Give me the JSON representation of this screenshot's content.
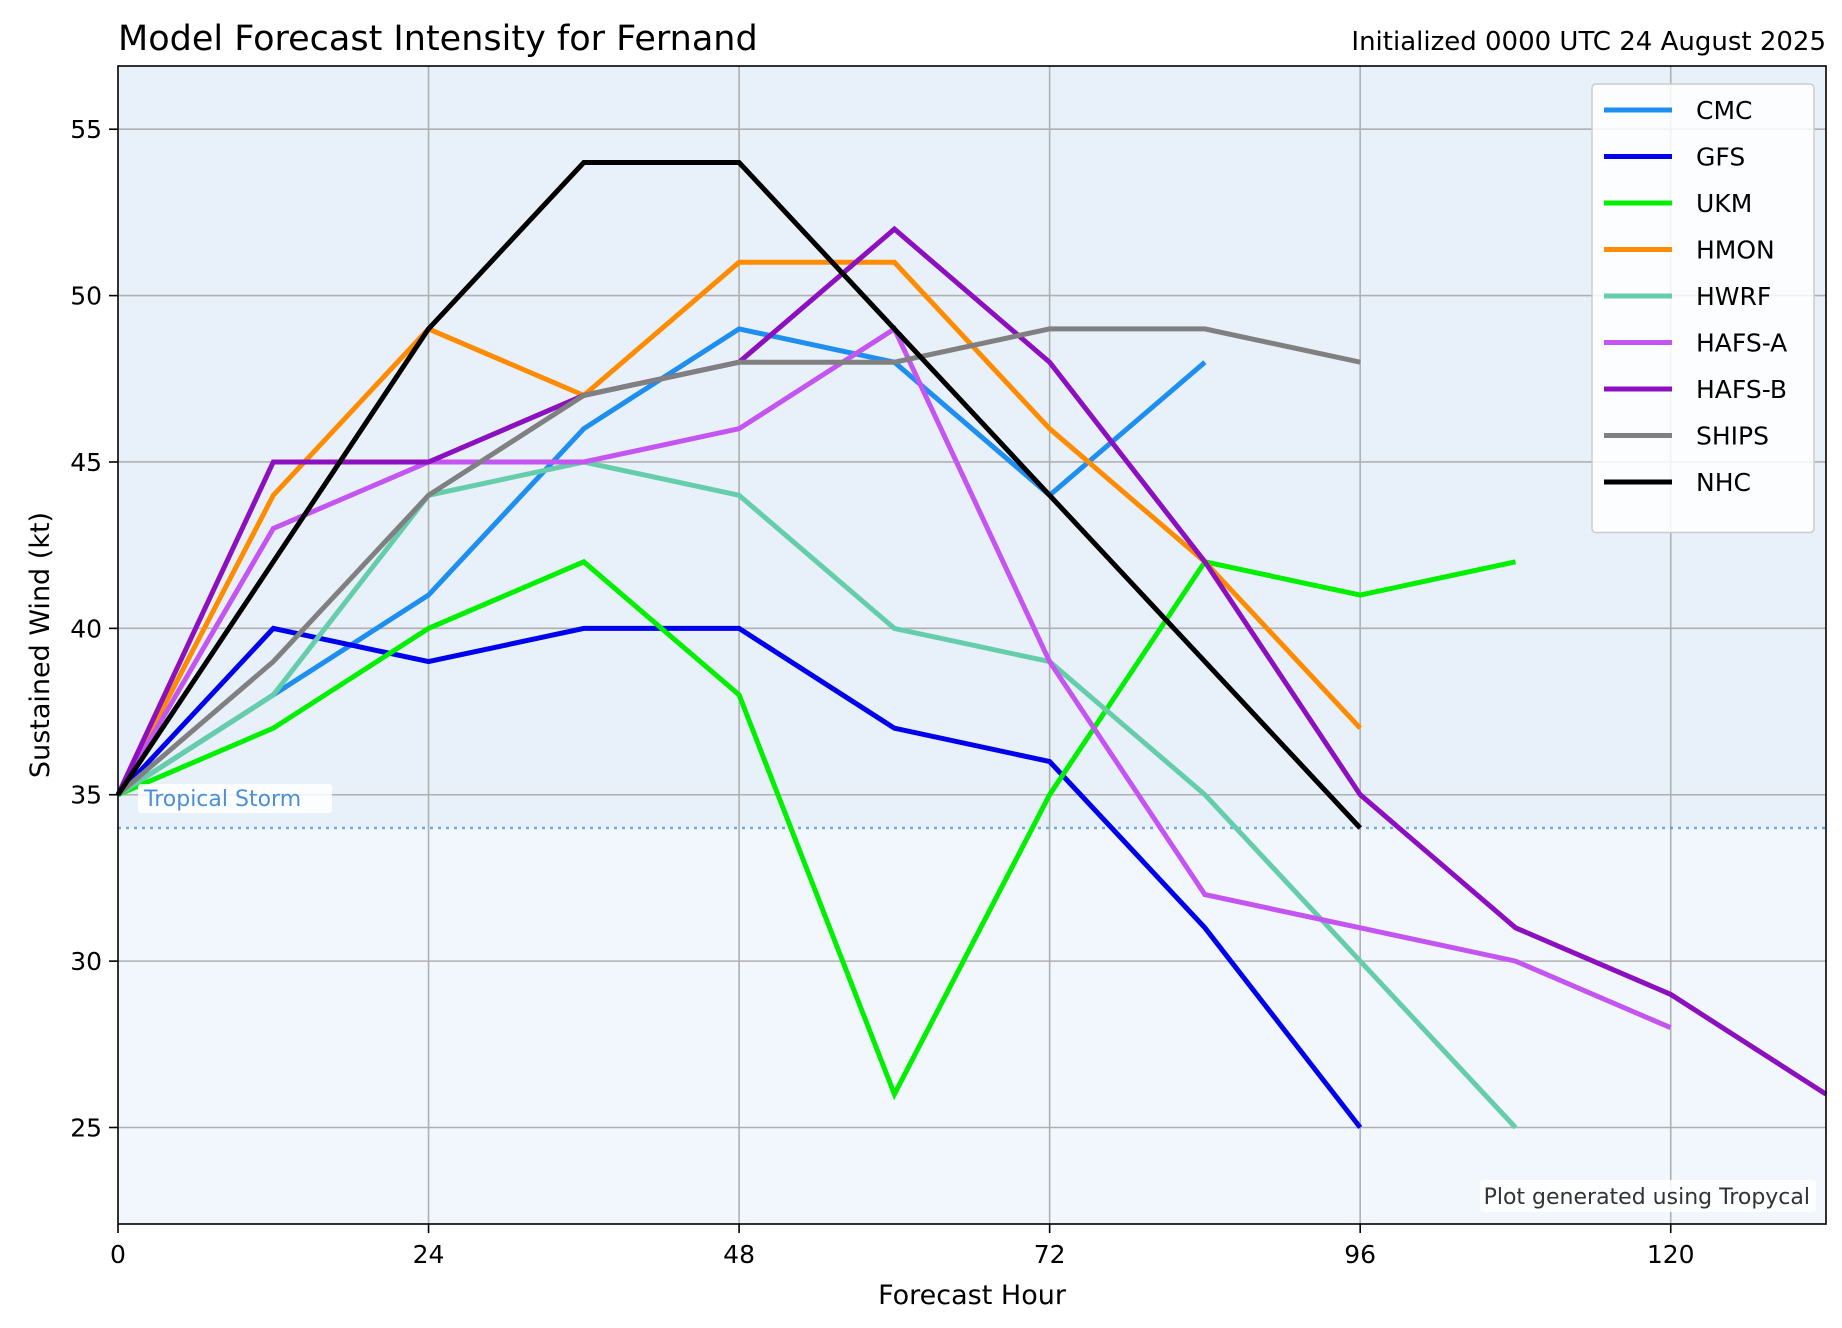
{
  "chart_data": {
    "type": "line",
    "title": "Model Forecast Intensity for Fernand",
    "subtitle": "Initialized 0000 UTC 24 August 2025",
    "xlabel": "Forecast Hour",
    "ylabel": "Sustained Wind (kt)",
    "xlim": [
      0,
      132
    ],
    "ylim": [
      22.1,
      56.9
    ],
    "xticks": [
      0,
      24,
      48,
      72,
      96,
      120
    ],
    "yticks": [
      25,
      30,
      35,
      40,
      45,
      50,
      55
    ],
    "grid": true,
    "legend_position": "top-right",
    "threshold": {
      "value": 34,
      "label": "Tropical Storm",
      "color": "#4a90d9"
    },
    "credit": "Plot generated using Tropycal",
    "colors": {
      "below_threshold_bg": "#f1f7fc",
      "above_threshold_bg": "#e8f1f9"
    },
    "series": [
      {
        "name": "CMC",
        "color": "#1e8ff0",
        "x": [
          0,
          12,
          24,
          36,
          48,
          60,
          72,
          84
        ],
        "y": [
          35,
          38,
          41,
          46,
          49,
          48,
          44,
          48
        ]
      },
      {
        "name": "GFS",
        "color": "#0000ee",
        "x": [
          0,
          12,
          24,
          36,
          48,
          60,
          72,
          84,
          96
        ],
        "y": [
          35,
          40,
          39,
          40,
          40,
          37,
          36,
          31,
          25
        ]
      },
      {
        "name": "UKM",
        "color": "#00f000",
        "x": [
          0,
          12,
          24,
          36,
          48,
          60,
          72,
          84,
          96,
          108
        ],
        "y": [
          35,
          37,
          40,
          42,
          38,
          26,
          35,
          42,
          41,
          42
        ]
      },
      {
        "name": "HMON",
        "color": "#ff8c00",
        "x": [
          0,
          12,
          24,
          36,
          48,
          60,
          72,
          84,
          96
        ],
        "y": [
          35,
          44,
          49,
          47,
          51,
          51,
          46,
          42,
          37
        ]
      },
      {
        "name": "HWRF",
        "color": "#66cdaa",
        "x": [
          0,
          12,
          24,
          36,
          48,
          60,
          72,
          84,
          96,
          108
        ],
        "y": [
          35,
          38,
          44,
          45,
          44,
          40,
          39,
          35,
          30,
          25
        ]
      },
      {
        "name": "HAFS-A",
        "color": "#c455f2",
        "x": [
          0,
          12,
          24,
          36,
          48,
          60,
          72,
          84,
          96,
          108,
          120
        ],
        "y": [
          35,
          43,
          45,
          45,
          46,
          49,
          39,
          32,
          31,
          30,
          28
        ]
      },
      {
        "name": "HAFS-B",
        "color": "#8c10c0",
        "x": [
          0,
          12,
          24,
          36,
          48,
          60,
          72,
          84,
          96,
          108,
          120,
          132
        ],
        "y": [
          35,
          45,
          45,
          47,
          48,
          52,
          48,
          42,
          35,
          31,
          29,
          26
        ]
      },
      {
        "name": "SHIPS",
        "color": "#808080",
        "x": [
          0,
          12,
          24,
          36,
          48,
          60,
          72,
          84,
          96
        ],
        "y": [
          35,
          39,
          44,
          47,
          48,
          48,
          49,
          49,
          48
        ]
      },
      {
        "name": "NHC",
        "color": "#000000",
        "x": [
          0,
          12,
          24,
          36,
          48,
          60,
          72,
          84,
          96
        ],
        "y": [
          35,
          42,
          49,
          54,
          54,
          49,
          44,
          39,
          34
        ]
      }
    ]
  }
}
